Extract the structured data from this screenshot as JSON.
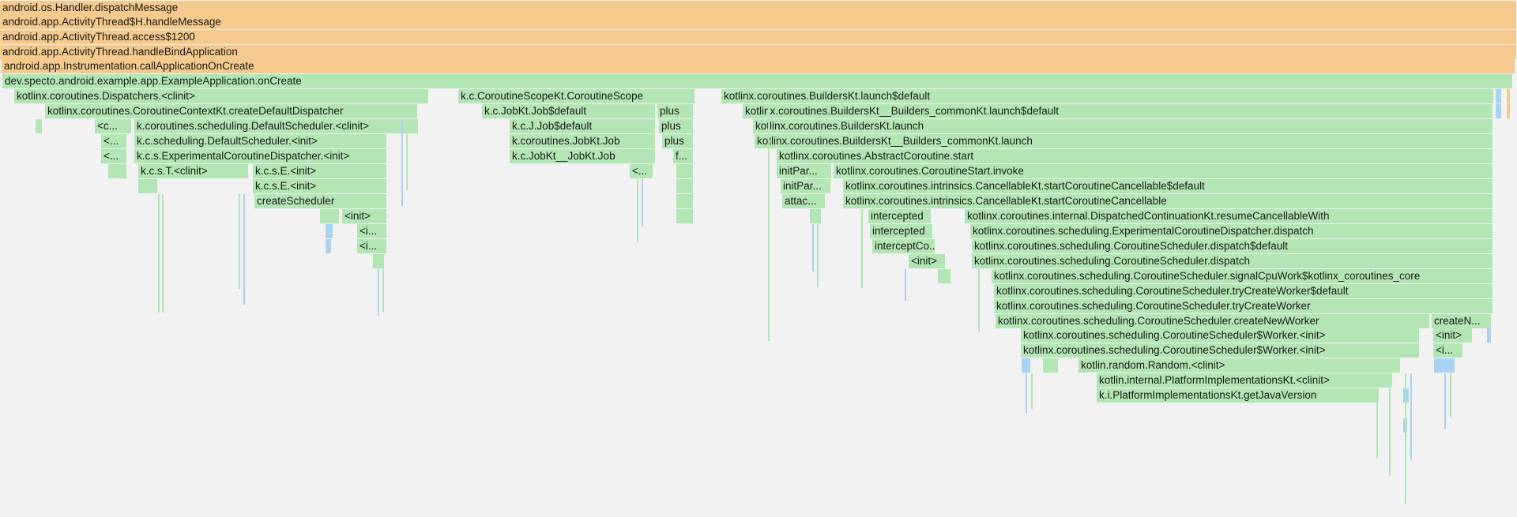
{
  "colors": {
    "system": "#f6c98c",
    "app": "#b3e6b5",
    "other": "#a9d2f5",
    "background": "#f2f2f2"
  },
  "frames": {
    "f0": "android.os.Handler.dispatchMessage",
    "f1": "android.app.ActivityThread$H.handleMessage",
    "f2": "android.app.ActivityThread.access$1200",
    "f3": "android.app.ActivityThread.handleBindApplication",
    "f4": "android.app.Instrumentation.callApplicationOnCreate",
    "f5": "dev.specto.android.example.app.ExampleApplication.onCreate",
    "f6": "kotlinx.coroutines.Dispatchers.<clinit>",
    "f7": "k.c.CoroutineScopeKt.CoroutineScope",
    "f8": "kotlinx.coroutines.BuildersKt.launch$default",
    "f9": "kotlinx.coroutines.CoroutineContextKt.createDefaultDispatcher",
    "f10": "k.c.JobKt.Job$default",
    "f11": "plus",
    "f12": "kotlinx.coroutines.BuildersKt__Builders_commonKt.launch$default",
    "f13": "<c...",
    "f14": "k.coroutines.scheduling.DefaultScheduler.<clinit>",
    "f15": "k.c.J.Job$default",
    "f16": "plus",
    "f17": "kotlinx.coroutines.BuildersKt.launch",
    "f18": "<...",
    "f19": "k.c.scheduling.DefaultScheduler.<init>",
    "f20": "k.coroutines.JobKt.Job",
    "f21": "plus",
    "f22": "kotlinx.coroutines.BuildersKt__Builders_commonKt.launch",
    "f23": "<...",
    "f24": "k.c.s.ExperimentalCoroutineDispatcher.<init>",
    "f25": "k.c.JobKt__JobKt.Job",
    "f26": "f...",
    "f27": "kotlinx.coroutines.AbstractCoroutine.start",
    "f28": "k.c.s.T.<clinit>",
    "f29": "k.c.s.E.<init>",
    "f30": "<...",
    "f31": "initPar...",
    "f32": "kotlinx.coroutines.CoroutineStart.invoke",
    "f33": "k.c.s.E.<init>",
    "f34": "initPar...",
    "f35": "kotlinx.coroutines.intrinsics.CancellableKt.startCoroutineCancellable$default",
    "f36": "createScheduler",
    "f37": "attac...",
    "f38": "kotlinx.coroutines.intrinsics.CancellableKt.startCoroutineCancellable",
    "f39": "<init>",
    "f40": "intercepted",
    "f41": "kotlinx.coroutines.internal.DispatchedContinuationKt.resumeCancellableWith",
    "f42": "<i...",
    "f43": "intercepted",
    "f44": "kotlinx.coroutines.scheduling.ExperimentalCoroutineDispatcher.dispatch",
    "f45": "<i...",
    "f46": "interceptCo...",
    "f47": "kotlinx.coroutines.scheduling.CoroutineScheduler.dispatch$default",
    "f48": "<init>",
    "f49": "kotlinx.coroutines.scheduling.CoroutineScheduler.dispatch",
    "f50": "kotlinx.coroutines.scheduling.CoroutineScheduler.signalCpuWork$kotlinx_coroutines_core",
    "f51": "kotlinx.coroutines.scheduling.CoroutineScheduler.tryCreateWorker$default",
    "f52": "kotlinx.coroutines.scheduling.CoroutineScheduler.tryCreateWorker",
    "f53": "kotlinx.coroutines.scheduling.CoroutineScheduler.createNewWorker",
    "f54": "createN...",
    "f55": "kotlinx.coroutines.scheduling.CoroutineScheduler$Worker.<init>",
    "f56": "<init>",
    "f57": "kotlinx.coroutines.scheduling.CoroutineScheduler$Worker.<init>",
    "f58": "<i...",
    "f59": "kotlin.random.Random.<clinit>",
    "f60": "kotlin.internal.PlatformImplementationsKt.<clinit>",
    "f61": "k.i.PlatformImplementationsKt.getJavaVersion"
  }
}
